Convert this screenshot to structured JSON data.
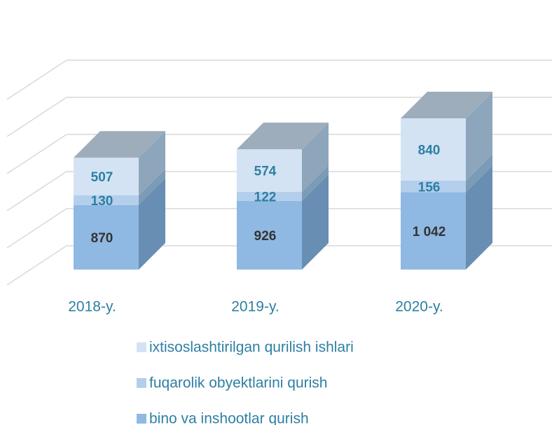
{
  "chart_data": {
    "type": "bar3d_stacked",
    "categories": [
      "2018-y.",
      "2019-y.",
      "2020-y."
    ],
    "series": [
      {
        "name": "bino va inshootlar qurish",
        "color": "#8fb9e3",
        "values": [
          870,
          926,
          1042
        ],
        "value_labels": [
          "870",
          "926",
          "1 042"
        ],
        "label_color": "#333333"
      },
      {
        "name": "fuqarolik obyektlarini qurish",
        "color": "#b3cfec",
        "values": [
          130,
          122,
          156
        ],
        "label_color": "#2e7fa3"
      },
      {
        "name": "ixtisoslashtirilgan qurilish ishlari",
        "color": "#d3e3f4",
        "values": [
          507,
          574,
          840
        ],
        "label_color": "#2e7fa3"
      }
    ],
    "ylim": [
      0,
      2500
    ],
    "yticks": [
      0,
      500,
      1000,
      1500,
      2000,
      2500
    ],
    "grid": true,
    "legend": "bottom"
  }
}
